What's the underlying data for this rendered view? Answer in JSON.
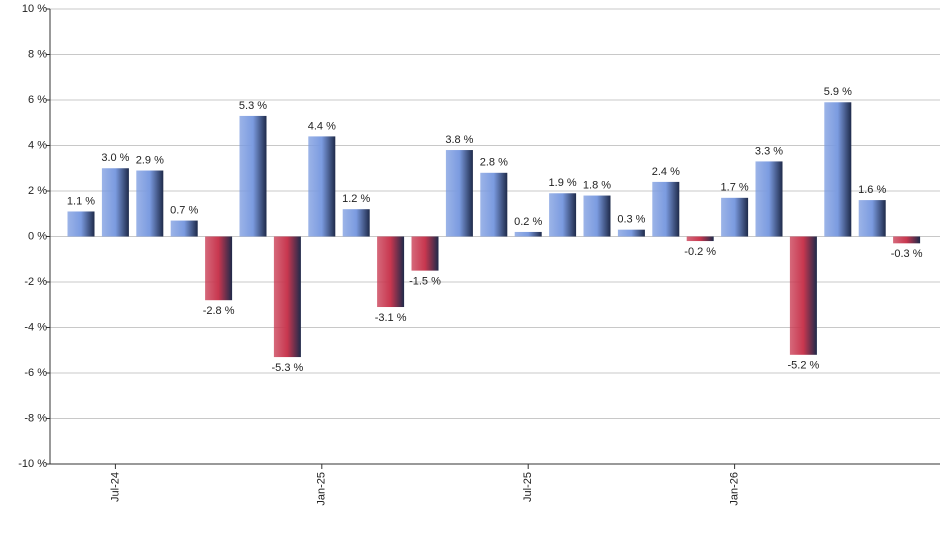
{
  "chart_data": {
    "type": "bar",
    "categories": [
      null,
      "Jul-24",
      null,
      null,
      null,
      null,
      null,
      "Jan-25",
      null,
      null,
      null,
      null,
      null,
      "Jul-25",
      null,
      null,
      null,
      null,
      null,
      "Jan-26",
      null,
      null,
      null,
      null,
      null
    ],
    "values": [
      1.1,
      3.0,
      2.9,
      0.7,
      -2.8,
      5.3,
      -5.3,
      4.4,
      1.2,
      -3.1,
      -1.5,
      3.8,
      2.8,
      0.2,
      1.9,
      1.8,
      0.3,
      2.4,
      -0.2,
      1.7,
      3.3,
      -5.2,
      5.9,
      1.6,
      -0.3
    ],
    "value_labels": [
      "1.1 %",
      "3.0 %",
      "2.9 %",
      "0.7 %",
      "-2.8 %",
      "5.3 %",
      "-5.3 %",
      "4.4 %",
      "1.2 %",
      "-3.1 %",
      "-1.5 %",
      "3.8 %",
      "2.8 %",
      "0.2 %",
      "1.9 %",
      "1.8 %",
      "0.3 %",
      "2.4 %",
      "-0.2 %",
      "1.7 %",
      "3.3 %",
      "-5.2 %",
      "5.9 %",
      "1.6 %",
      "-0.3 %"
    ],
    "positive_color": "#7b9be0",
    "negative_color": "#c8374f",
    "ylim": [
      -10,
      10
    ],
    "yticks": [
      {
        "value": -10,
        "label": "-10 %"
      },
      {
        "value": -8,
        "label": "-8 %"
      },
      {
        "value": -6,
        "label": "-6 %"
      },
      {
        "value": -4,
        "label": "-4 %"
      },
      {
        "value": -2,
        "label": "-2 %"
      },
      {
        "value": 0,
        "label": "0 %"
      },
      {
        "value": 2,
        "label": "2 %"
      },
      {
        "value": 4,
        "label": "4 %"
      },
      {
        "value": 6,
        "label": "6 %"
      },
      {
        "value": 8,
        "label": "8 %"
      },
      {
        "value": 10,
        "label": "10 %"
      }
    ],
    "grid": true
  }
}
